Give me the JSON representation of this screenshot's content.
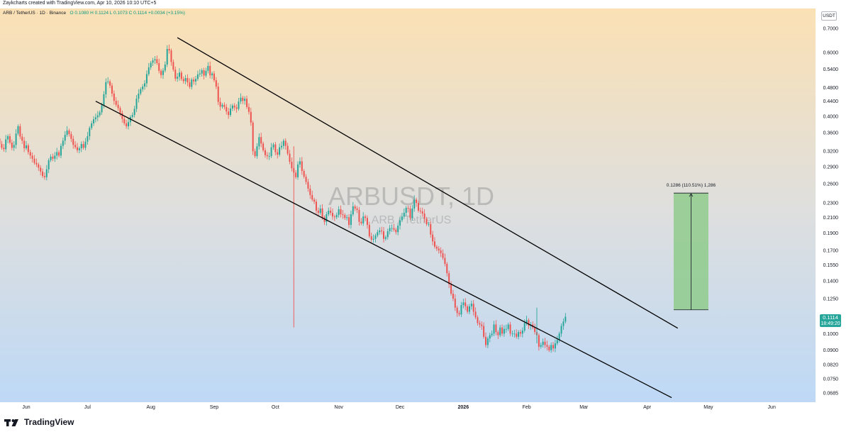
{
  "header": {
    "credit": "Zaykcharts created with TradingView.com, Apr 10, 2026 10:10 UTC+5",
    "symbol_line": "ARB / TetherUS · 1D · Binance",
    "ohlc": "O 0.1080  H 0.1124  L 0.1073  C 0.1114  +0.0034 (+3.15%)",
    "currency": "USDT"
  },
  "watermark": {
    "symbol": "ARBUSDT, 1D",
    "name": "ARB / TetherUS"
  },
  "price_tag": {
    "price": "0.1114",
    "countdown": "18:49:20"
  },
  "projection": {
    "label": "0.1286 (110.51%) 1,286",
    "from_price": 0.1164,
    "to_price": 0.245,
    "from_date": "2026-04-14",
    "to_date": "2026-05-01"
  },
  "footer": {
    "brand": "TradingView"
  },
  "colors": {
    "up": "#26a69a",
    "down": "#ef5350",
    "target_zone": "#8fcb8c",
    "bg_top": "#fbe0b4",
    "bg_bottom": "#bcd8f7"
  },
  "chart_data": {
    "type": "candlestick",
    "scale": "log",
    "ylim": [
      0.0635,
      0.75
    ],
    "y_ticks": [
      "0.7000",
      "0.6000",
      "0.5400",
      "0.4800",
      "0.4400",
      "0.4000",
      "0.3600",
      "0.3200",
      "0.2900",
      "0.2600",
      "0.2300",
      "0.2100",
      "0.1900",
      "0.1700",
      "0.1550",
      "0.1400",
      "0.1250",
      "0.1100",
      "0.1000",
      "0.0900",
      "0.0820",
      "0.0750",
      "0.0685"
    ],
    "x_ticks": [
      {
        "label": "Jun",
        "date": "2025-06-01"
      },
      {
        "label": "Jul",
        "date": "2025-07-01"
      },
      {
        "label": "Aug",
        "date": "2025-08-01"
      },
      {
        "label": "Sep",
        "date": "2025-09-01"
      },
      {
        "label": "Oct",
        "date": "2025-10-01"
      },
      {
        "label": "Nov",
        "date": "2025-11-01"
      },
      {
        "label": "Dec",
        "date": "2025-12-01"
      },
      {
        "label": "2026",
        "date": "2026-01-01"
      },
      {
        "label": "Feb",
        "date": "2026-02-01"
      },
      {
        "label": "Mar",
        "date": "2026-03-01"
      },
      {
        "label": "Apr",
        "date": "2026-04-01"
      },
      {
        "label": "May",
        "date": "2026-05-01"
      },
      {
        "label": "Jun",
        "date": "2026-06-01"
      }
    ],
    "trendlines": [
      {
        "name": "channel-upper",
        "from": {
          "date": "2025-08-14",
          "price": 0.66
        },
        "to": {
          "date": "2026-04-16",
          "price": 0.1035
        }
      },
      {
        "name": "channel-lower",
        "from": {
          "date": "2025-07-05",
          "price": 0.44
        },
        "to": {
          "date": "2026-04-13",
          "price": 0.0665
        }
      }
    ],
    "first_date": "2025-05-08",
    "closes": [
      0.425,
      0.415,
      0.402,
      0.394,
      0.428,
      0.405,
      0.392,
      0.378,
      0.362,
      0.358,
      0.347,
      0.335,
      0.327,
      0.324,
      0.345,
      0.352,
      0.338,
      0.327,
      0.333,
      0.358,
      0.375,
      0.351,
      0.342,
      0.326,
      0.332,
      0.318,
      0.311,
      0.305,
      0.297,
      0.294,
      0.288,
      0.281,
      0.273,
      0.271,
      0.285,
      0.302,
      0.309,
      0.305,
      0.311,
      0.318,
      0.311,
      0.331,
      0.342,
      0.355,
      0.365,
      0.357,
      0.346,
      0.333,
      0.328,
      0.322,
      0.326,
      0.335,
      0.327,
      0.34,
      0.352,
      0.371,
      0.382,
      0.392,
      0.397,
      0.402,
      0.41,
      0.429,
      0.46,
      0.497,
      0.499,
      0.486,
      0.462,
      0.441,
      0.43,
      0.421,
      0.408,
      0.393,
      0.382,
      0.375,
      0.385,
      0.398,
      0.403,
      0.419,
      0.447,
      0.462,
      0.475,
      0.483,
      0.493,
      0.523,
      0.546,
      0.562,
      0.571,
      0.575,
      0.561,
      0.534,
      0.52,
      0.535,
      0.556,
      0.614,
      0.608,
      0.565,
      0.538,
      0.508,
      0.514,
      0.528,
      0.507,
      0.5,
      0.51,
      0.496,
      0.482,
      0.505,
      0.499,
      0.507,
      0.522,
      0.525,
      0.536,
      0.518,
      0.534,
      0.551,
      0.519,
      0.525,
      0.503,
      0.483,
      0.438,
      0.425,
      0.43,
      0.424,
      0.412,
      0.403,
      0.42,
      0.428,
      0.423,
      0.419,
      0.439,
      0.45,
      0.441,
      0.447,
      0.424,
      0.411,
      0.384,
      0.32,
      0.31,
      0.33,
      0.35,
      0.336,
      0.322,
      0.312,
      0.31,
      0.31,
      0.328,
      0.334,
      0.318,
      0.313,
      0.328,
      0.331,
      0.342,
      0.331,
      0.315,
      0.299,
      0.287,
      0.279,
      0.271,
      0.294,
      0.3,
      0.282,
      0.272,
      0.263,
      0.252,
      0.242,
      0.235,
      0.232,
      0.219,
      0.216,
      0.222,
      0.21,
      0.204,
      0.214,
      0.219,
      0.216,
      0.211,
      0.21,
      0.213,
      0.221,
      0.214,
      0.213,
      0.209,
      0.21,
      0.2,
      0.214,
      0.225,
      0.222,
      0.22,
      0.204,
      0.202,
      0.211,
      0.209,
      0.2,
      0.186,
      0.182,
      0.183,
      0.187,
      0.191,
      0.193,
      0.192,
      0.183,
      0.185,
      0.192,
      0.196,
      0.196,
      0.194,
      0.191,
      0.199,
      0.206,
      0.211,
      0.216,
      0.223,
      0.222,
      0.209,
      0.222,
      0.235,
      0.23,
      0.219,
      0.218,
      0.215,
      0.208,
      0.201,
      0.201,
      0.188,
      0.18,
      0.174,
      0.172,
      0.17,
      0.167,
      0.162,
      0.156,
      0.147,
      0.137,
      0.129,
      0.125,
      0.118,
      0.114,
      0.113,
      0.12,
      0.122,
      0.119,
      0.115,
      0.119,
      0.121,
      0.115,
      0.111,
      0.107,
      0.106,
      0.105,
      0.098,
      0.093,
      0.097,
      0.099,
      0.1,
      0.106,
      0.101,
      0.099,
      0.104,
      0.1,
      0.103,
      0.103,
      0.106,
      0.1,
      0.1,
      0.1,
      0.098,
      0.101,
      0.1,
      0.102,
      0.107,
      0.109,
      0.105,
      0.106,
      0.104,
      0.101,
      0.099,
      0.092,
      0.093,
      0.095,
      0.093,
      0.092,
      0.09,
      0.093,
      0.091,
      0.094,
      0.096,
      0.1,
      0.105,
      0.108,
      0.1114
    ]
  }
}
